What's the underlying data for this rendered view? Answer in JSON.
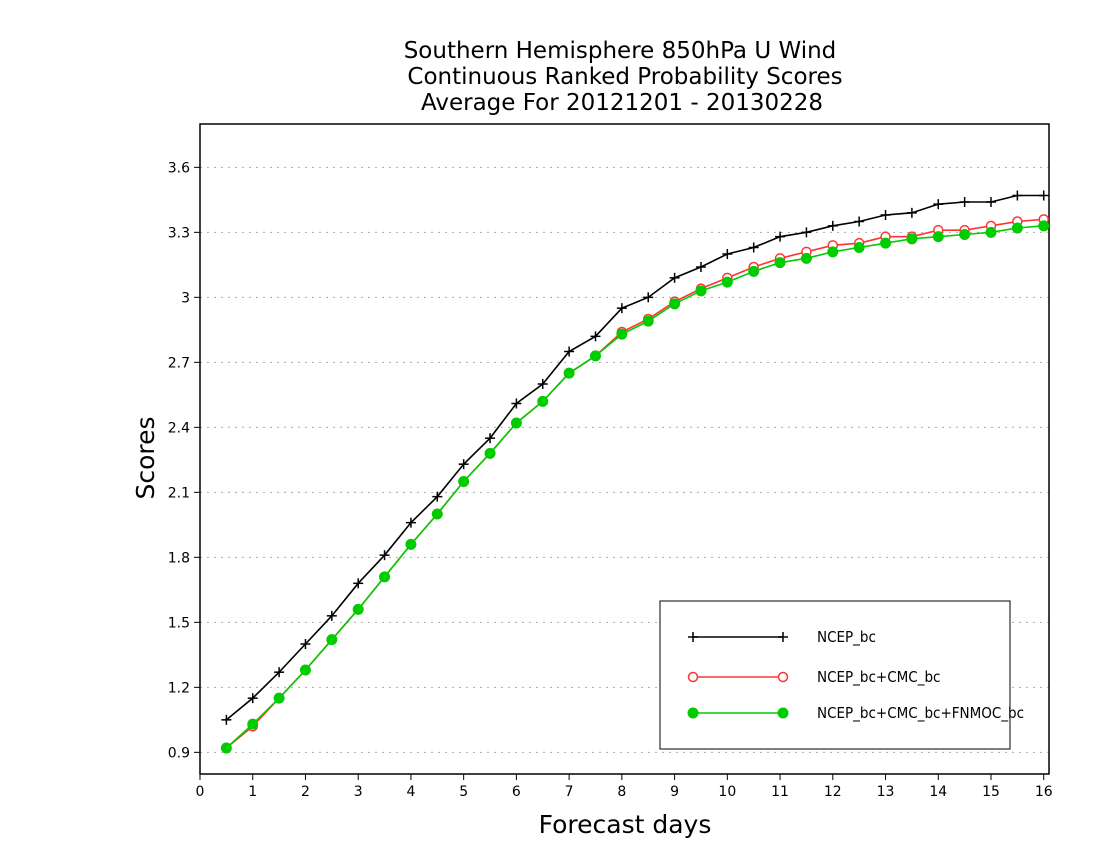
{
  "chart_data": {
    "type": "line",
    "title": [
      "Southern Hemisphere 850hPa U Wind",
      "Continuous Ranked Probability Scores",
      "Average For 20121201 - 20130228"
    ],
    "xlabel": "Forecast days",
    "ylabel": "Scores",
    "xlim": [
      0,
      16.1
    ],
    "ylim": [
      0.8,
      3.8
    ],
    "xticks": [
      0,
      1,
      2,
      3,
      4,
      5,
      6,
      7,
      8,
      9,
      10,
      11,
      12,
      13,
      14,
      15,
      16
    ],
    "xtick_labels": [
      "0",
      "1",
      "2",
      "3",
      "4",
      "5",
      "6",
      "7",
      "8",
      "9",
      "10",
      "11",
      "12",
      "13",
      "14",
      "15",
      "16"
    ],
    "yticks": [
      0.9,
      1.2,
      1.5,
      1.8,
      2.1,
      2.4,
      2.7,
      3.0,
      3.3,
      3.6
    ],
    "ytick_labels": [
      "0.9",
      "1.2",
      "1.5",
      "1.8",
      "2.1",
      "2.4",
      "2.7",
      "3",
      "3.3",
      "3.6"
    ],
    "grid": "horizontal dotted",
    "legend_position": "bottom-right",
    "x": [
      0.5,
      1.0,
      1.5,
      2.0,
      2.5,
      3.0,
      3.5,
      4.0,
      4.5,
      5.0,
      5.5,
      6.0,
      6.5,
      7.0,
      7.5,
      8.0,
      8.5,
      9.0,
      9.5,
      10.0,
      10.5,
      11.0,
      11.5,
      12.0,
      12.5,
      13.0,
      13.5,
      14.0,
      14.5,
      15.0,
      15.5,
      16.0
    ],
    "series": [
      {
        "name": "NCEP_bc",
        "color": "#000000",
        "marker": "plus",
        "values": [
          1.05,
          1.15,
          1.27,
          1.4,
          1.53,
          1.68,
          1.81,
          1.96,
          2.08,
          2.23,
          2.35,
          2.51,
          2.6,
          2.75,
          2.82,
          2.95,
          3.0,
          3.09,
          3.14,
          3.2,
          3.23,
          3.28,
          3.3,
          3.33,
          3.35,
          3.38,
          3.39,
          3.43,
          3.44,
          3.44,
          3.47,
          3.47
        ]
      },
      {
        "name": "NCEP_bc+CMC_bc",
        "color": "#ff3333",
        "marker": "open-circle",
        "values": [
          0.92,
          1.02,
          1.15,
          1.28,
          1.42,
          1.56,
          1.71,
          1.86,
          2.0,
          2.15,
          2.28,
          2.42,
          2.52,
          2.65,
          2.73,
          2.84,
          2.9,
          2.98,
          3.04,
          3.09,
          3.14,
          3.18,
          3.21,
          3.24,
          3.25,
          3.28,
          3.28,
          3.31,
          3.31,
          3.33,
          3.35,
          3.36
        ]
      },
      {
        "name": "NCEP_bc+CMC_bc+FNMOC_bc",
        "color": "#00cc00",
        "marker": "filled-circle",
        "values": [
          0.92,
          1.03,
          1.15,
          1.28,
          1.42,
          1.56,
          1.71,
          1.86,
          2.0,
          2.15,
          2.28,
          2.42,
          2.52,
          2.65,
          2.73,
          2.83,
          2.89,
          2.97,
          3.03,
          3.07,
          3.12,
          3.16,
          3.18,
          3.21,
          3.23,
          3.25,
          3.27,
          3.28,
          3.29,
          3.3,
          3.32,
          3.33
        ]
      }
    ]
  }
}
